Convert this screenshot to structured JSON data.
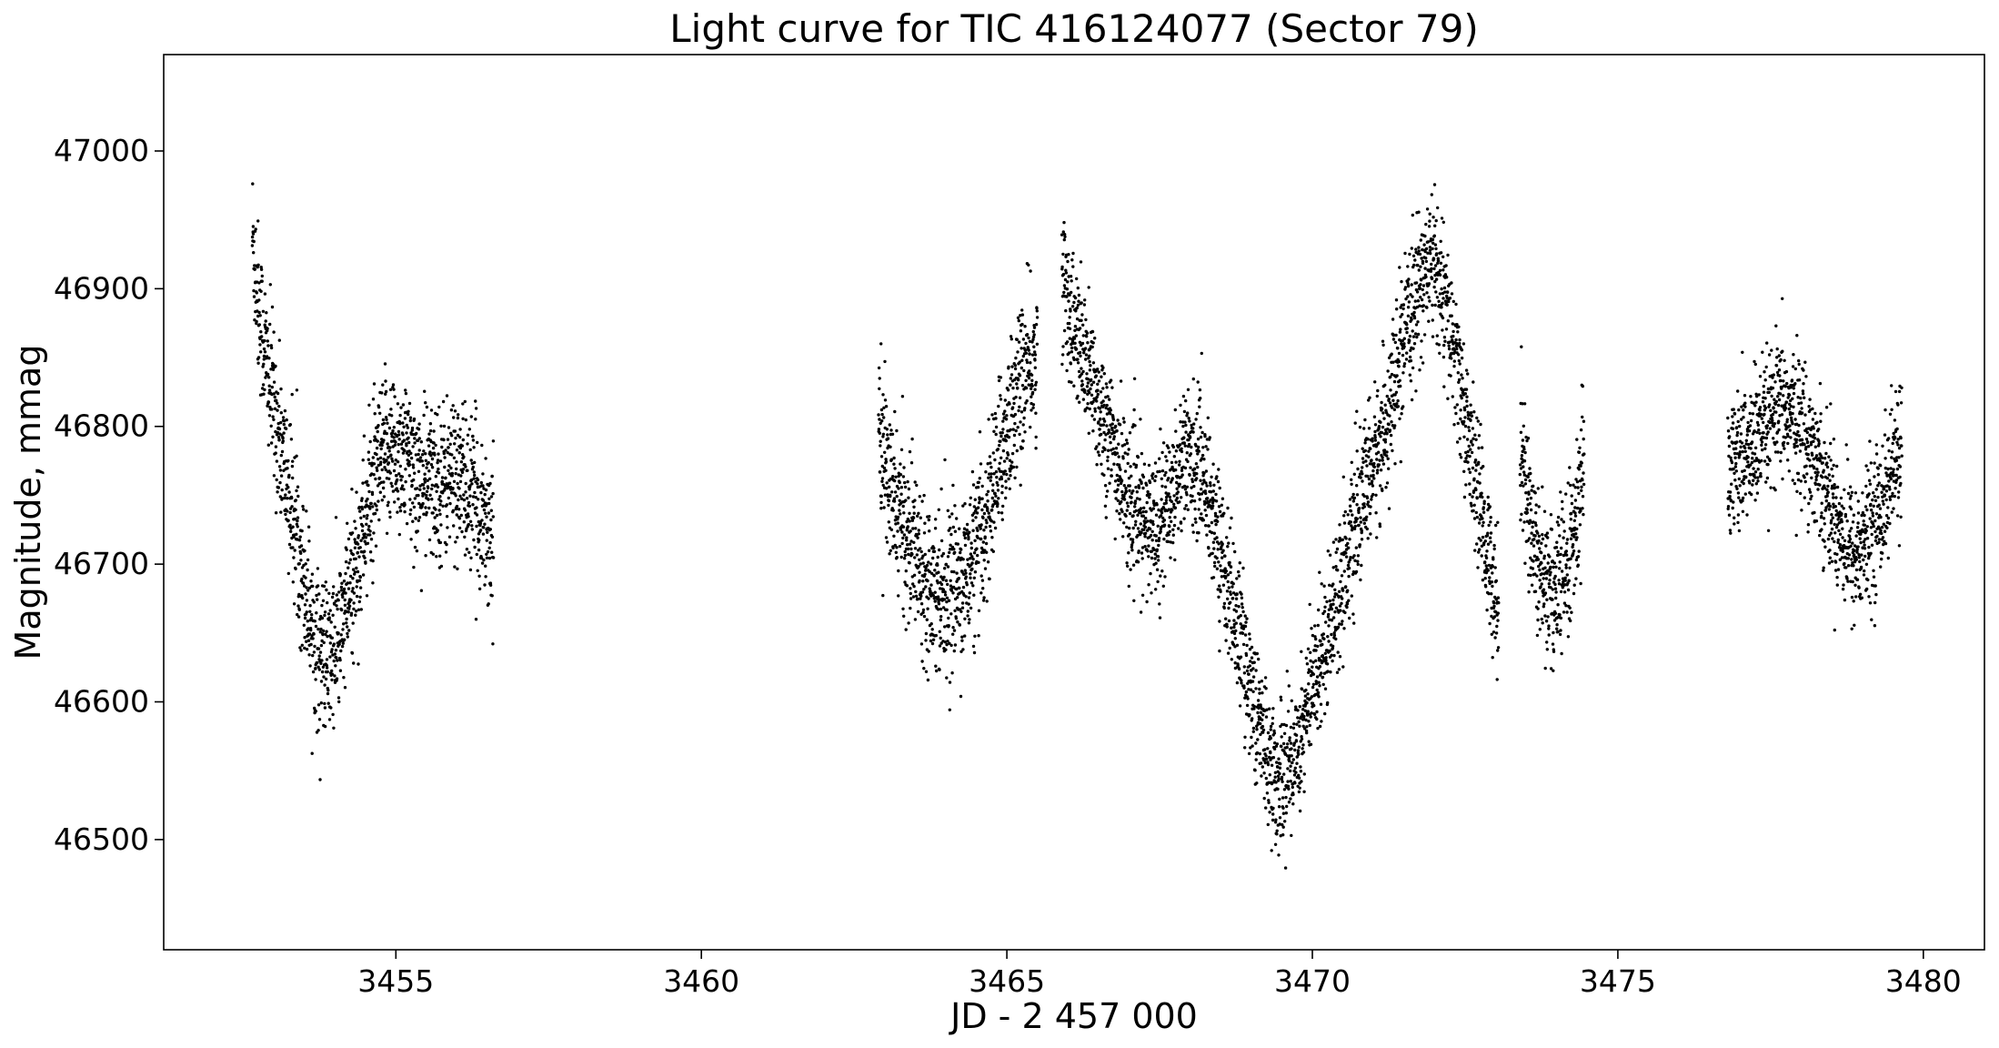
{
  "chart_data": {
    "type": "scatter",
    "title": "Light curve for TIC 416124077 (Sector 79)",
    "xlabel": "JD - 2 457 000",
    "ylabel": "Magnitude, mmag",
    "xlim": [
      3451.2,
      3481.0
    ],
    "ylim": [
      46420,
      47070
    ],
    "x_ticks": [
      3455,
      3460,
      3465,
      3470,
      3475,
      3480
    ],
    "y_ticks": [
      46500,
      46600,
      46700,
      46800,
      46900,
      47000
    ],
    "grid": false,
    "marker_color": "#000000",
    "series": [
      {
        "segments": [
          {
            "x": [
              3452.65,
              3452.75,
              3452.9,
              3453.1,
              3453.3,
              3453.5,
              3453.7,
              3453.9,
              3454.1,
              3454.3,
              3454.5,
              3454.7,
              3454.9,
              3455.1,
              3455.4,
              3455.7,
              3456.0,
              3456.3,
              3456.6
            ],
            "y": [
              46940,
              46890,
              46840,
              46790,
              46740,
              46690,
              46640,
              46630,
              46650,
              46690,
              46730,
              46765,
              46785,
              46780,
              46760,
              46760,
              46765,
              46745,
              46720
            ],
            "scatter": 28
          },
          {
            "x": [
              3462.9,
              3463.1,
              3463.4,
              3463.7,
              3464.0,
              3464.3,
              3464.6,
              3464.9,
              3465.2,
              3465.5
            ],
            "y": [
              46800,
              46750,
              46720,
              46690,
              46680,
              46690,
              46720,
              46780,
              46830,
              46850
            ],
            "scatter": 28
          },
          {
            "x": [
              3465.9,
              3466.1,
              3466.4,
              3466.7,
              3467.0,
              3467.3,
              3467.6,
              3467.9,
              3468.2,
              3468.5,
              3468.8,
              3469.1,
              3469.4,
              3469.7,
              3470.0,
              3470.3,
              3470.6,
              3470.9,
              3471.2,
              3471.5,
              3471.8,
              3472.0,
              3472.3,
              3472.6,
              3472.9,
              3473.05
            ],
            "y": [
              46910,
              46870,
              46830,
              46790,
              46745,
              46725,
              46740,
              46780,
              46770,
              46710,
              46650,
              46590,
              46540,
              46560,
              46610,
              46660,
              46710,
              46760,
              46800,
              46860,
              46910,
              46920,
              46860,
              46780,
              46700,
              46670
            ],
            "scatter": 25
          },
          {
            "x": [
              3473.4,
              3473.6,
              3473.8,
              3474.0,
              3474.2,
              3474.45
            ],
            "y": [
              46790,
              46720,
              46690,
              46680,
              46700,
              46770
            ],
            "scatter": 28
          },
          {
            "x": [
              3476.8,
              3477.1,
              3477.4,
              3477.7,
              3478.0,
              3478.3,
              3478.6,
              3478.9,
              3479.2,
              3479.45,
              3479.65
            ],
            "y": [
              46770,
              46780,
              46795,
              46815,
              46800,
              46770,
              46730,
              46705,
              46730,
              46760,
              46790
            ],
            "scatter": 25
          }
        ]
      }
    ]
  }
}
